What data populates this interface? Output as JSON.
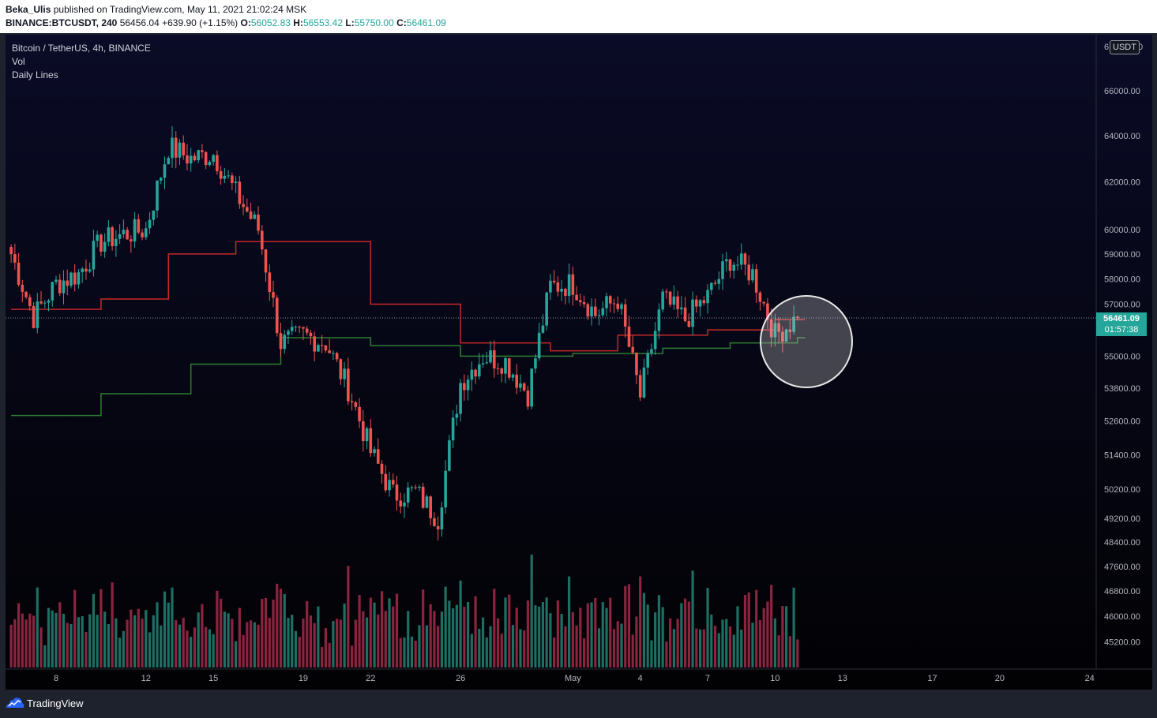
{
  "header": {
    "author": "Beka_Ulis",
    "published_text": "published on TradingView.com, May 11, 2021 21:02:24 MSK",
    "symbol": "BINANCE:BTCUSDT, 240",
    "last": "56456.04",
    "change": "+639.90 (+1.15%)",
    "o_label": "O:",
    "o_value": "56052.83",
    "h_label": "H:",
    "h_value": "56553.42",
    "l_label": "L:",
    "l_value": "55750.00",
    "c_label": "C:",
    "c_value": "56461.09"
  },
  "legend": {
    "title": "Bitcoin / TetherUS, 4h, BINANCE",
    "vol": "Vol",
    "indicator": "Daily Lines"
  },
  "price_scale": {
    "currency": "USDT",
    "top_left_fragment": "6",
    "top_right_fragment": "0"
  },
  "price_badge": {
    "price": "56461.09",
    "countdown": "01:57:38"
  },
  "footer": {
    "brand": "TradingView"
  },
  "colors": {
    "up": "#26a69a",
    "down": "#ef5350",
    "up_volume": "#1e6f63",
    "down_volume": "#8c2440",
    "upper_line": "#c62828",
    "lower_line": "#2e7d32",
    "background": "#05071c"
  },
  "chart_data": {
    "type": "candlestick",
    "title": "Bitcoin / TetherUS, 4h, BINANCE",
    "y_scale": "log",
    "y_ticks": [
      66000,
      64000,
      62000,
      60000,
      59000,
      58000,
      57000,
      55000,
      53800,
      52600,
      51400,
      50200,
      49200,
      48400,
      47600,
      46800,
      46000,
      45200
    ],
    "x_ticks": [
      "8",
      "12",
      "15",
      "19",
      "22",
      "26",
      "May",
      "4",
      "7",
      "10",
      "13",
      "17",
      "20",
      "24"
    ],
    "last_price": 56461.09,
    "last_time": "May 11, 2021",
    "close_series": [
      {
        "date": "Apr 6",
        "close": 59000
      },
      {
        "date": "Apr 7",
        "close": 56500
      },
      {
        "date": "Apr 8",
        "close": 57800
      },
      {
        "date": "Apr 9",
        "close": 58200
      },
      {
        "date": "Apr 10",
        "close": 59500
      },
      {
        "date": "Apr 11",
        "close": 59800
      },
      {
        "date": "Apr 12",
        "close": 60000
      },
      {
        "date": "Apr 13",
        "close": 63500
      },
      {
        "date": "Apr 14",
        "close": 63000
      },
      {
        "date": "Apr 15",
        "close": 63200
      },
      {
        "date": "Apr 16",
        "close": 61500
      },
      {
        "date": "Apr 17",
        "close": 60000
      },
      {
        "date": "Apr 18",
        "close": 55500
      },
      {
        "date": "Apr 19",
        "close": 55800
      },
      {
        "date": "Apr 20",
        "close": 55500
      },
      {
        "date": "Apr 21",
        "close": 53800
      },
      {
        "date": "Apr 22",
        "close": 51500
      },
      {
        "date": "Apr 23",
        "close": 50000
      },
      {
        "date": "Apr 24",
        "close": 50100
      },
      {
        "date": "Apr 25",
        "close": 49200
      },
      {
        "date": "Apr 26",
        "close": 54000
      },
      {
        "date": "Apr 27",
        "close": 55000
      },
      {
        "date": "Apr 28",
        "close": 54800
      },
      {
        "date": "Apr 29",
        "close": 53600
      },
      {
        "date": "Apr 30",
        "close": 57700
      },
      {
        "date": "May 1",
        "close": 57800
      },
      {
        "date": "May 2",
        "close": 56600
      },
      {
        "date": "May 3",
        "close": 57200
      },
      {
        "date": "May 4",
        "close": 53500
      },
      {
        "date": "May 5",
        "close": 57200
      },
      {
        "date": "May 6",
        "close": 56400
      },
      {
        "date": "May 7",
        "close": 57300
      },
      {
        "date": "May 8",
        "close": 58800
      },
      {
        "date": "May 9",
        "close": 58200
      },
      {
        "date": "May 10",
        "close": 55800
      },
      {
        "date": "May 11",
        "close": 56461
      }
    ],
    "upper_daily_line": [
      {
        "date": "Apr 6",
        "value": 56800
      },
      {
        "date": "Apr 10",
        "value": 57200
      },
      {
        "date": "Apr 13",
        "value": 59000
      },
      {
        "date": "Apr 16",
        "value": 59500
      },
      {
        "date": "Apr 18",
        "value": 59500
      },
      {
        "date": "Apr 22",
        "value": 57000
      },
      {
        "date": "Apr 26",
        "value": 55500
      },
      {
        "date": "Apr 30",
        "value": 55200
      },
      {
        "date": "May 3",
        "value": 55800
      },
      {
        "date": "May 7",
        "value": 56000
      },
      {
        "date": "May 10",
        "value": 56400
      },
      {
        "date": "May 11",
        "value": 56400
      }
    ],
    "lower_daily_line": [
      {
        "date": "Apr 6",
        "value": 52800
      },
      {
        "date": "Apr 10",
        "value": 53600
      },
      {
        "date": "Apr 14",
        "value": 54700
      },
      {
        "date": "Apr 18",
        "value": 55700
      },
      {
        "date": "Apr 22",
        "value": 55400
      },
      {
        "date": "Apr 26",
        "value": 55000
      },
      {
        "date": "May 1",
        "value": 55100
      },
      {
        "date": "May 5",
        "value": 55300
      },
      {
        "date": "May 8",
        "value": 55500
      },
      {
        "date": "May 11",
        "value": 55700
      }
    ],
    "annotation": "circle around May 10–11 candles"
  }
}
